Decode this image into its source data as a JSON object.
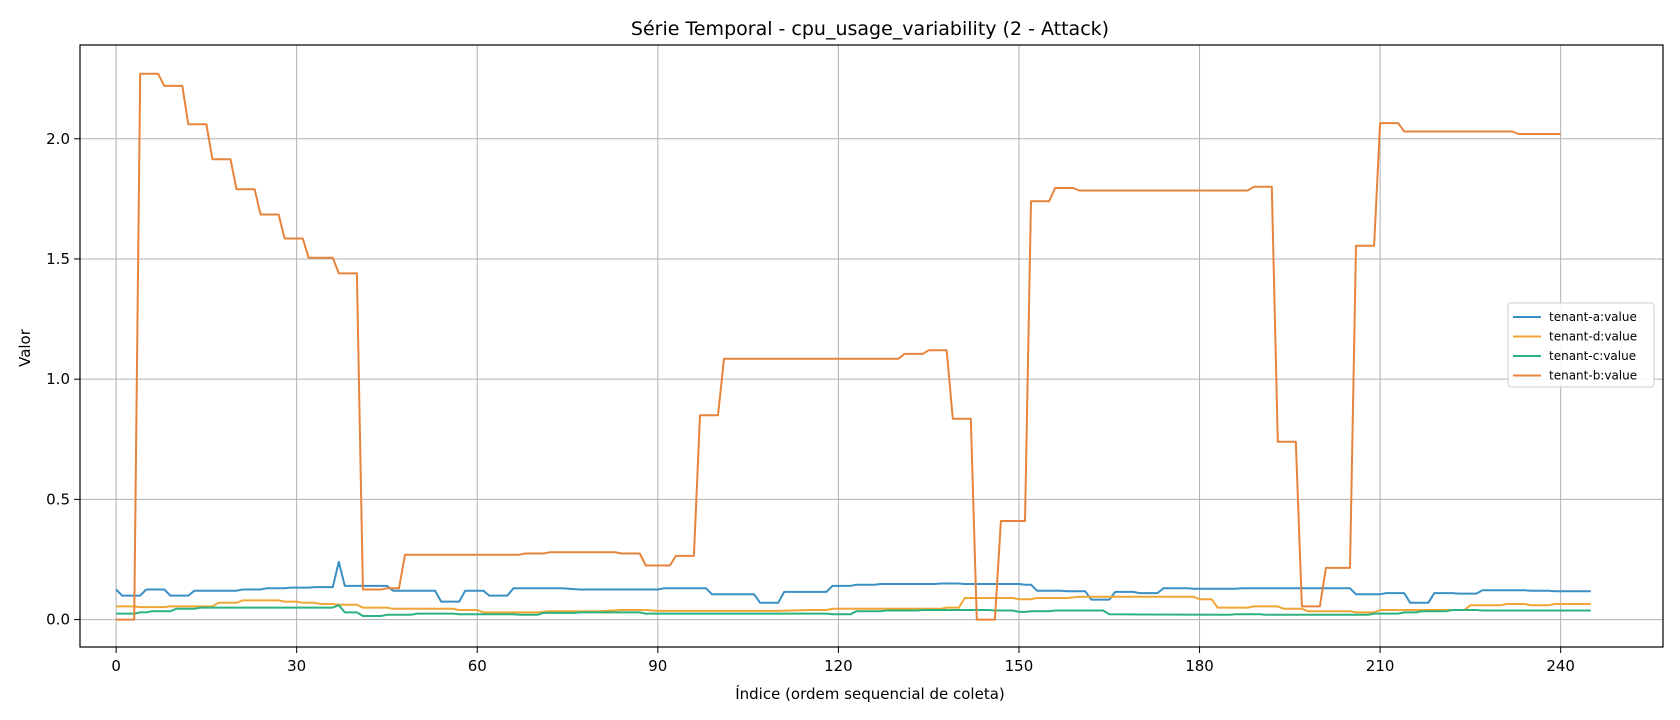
{
  "chart_data": {
    "type": "line",
    "title": "Série Temporal - cpu_usage_variability (2 - Attack)",
    "xlabel": "Índice (ordem sequencial de coleta)",
    "ylabel": "Valor",
    "xlim": [
      -6,
      257
    ],
    "ylim": [
      -0.114,
      2.39
    ],
    "xticks": [
      0,
      30,
      60,
      90,
      120,
      150,
      180,
      210,
      240
    ],
    "yticks": [
      0.0,
      0.5,
      1.0,
      1.5,
      2.0
    ],
    "ytick_labels": [
      "0.0",
      "0.5",
      "1.0",
      "1.5",
      "2.0"
    ],
    "grid": true,
    "legend_position": "center-right",
    "series": [
      {
        "name": "tenant-a:value",
        "color": "#3a8fc4",
        "points": [
          [
            0,
            0.125
          ],
          [
            1,
            0.1
          ],
          [
            2,
            0.1
          ],
          [
            3,
            0.1
          ],
          [
            4,
            0.1
          ],
          [
            5,
            0.125
          ],
          [
            6,
            0.125
          ],
          [
            7,
            0.125
          ],
          [
            8,
            0.125
          ],
          [
            9,
            0.1
          ],
          [
            10,
            0.1
          ],
          [
            11,
            0.1
          ],
          [
            12,
            0.1
          ],
          [
            13,
            0.12
          ],
          [
            14,
            0.12
          ],
          [
            17,
            0.12
          ],
          [
            20,
            0.12
          ],
          [
            21,
            0.125
          ],
          [
            24,
            0.125
          ],
          [
            25,
            0.13
          ],
          [
            28,
            0.13
          ],
          [
            29,
            0.133
          ],
          [
            32,
            0.133
          ],
          [
            33,
            0.135
          ],
          [
            36,
            0.135
          ],
          [
            37,
            0.24
          ],
          [
            38,
            0.14
          ],
          [
            40,
            0.14
          ],
          [
            45,
            0.14
          ],
          [
            46,
            0.12
          ],
          [
            49,
            0.12
          ],
          [
            53,
            0.12
          ],
          [
            54,
            0.075
          ],
          [
            57,
            0.075
          ],
          [
            58,
            0.12
          ],
          [
            61,
            0.12
          ],
          [
            62,
            0.1
          ],
          [
            65,
            0.1
          ],
          [
            66,
            0.13
          ],
          [
            74,
            0.13
          ],
          [
            77,
            0.125
          ],
          [
            90,
            0.125
          ],
          [
            91,
            0.13
          ],
          [
            98,
            0.13
          ],
          [
            99,
            0.105
          ],
          [
            106,
            0.105
          ],
          [
            107,
            0.07
          ],
          [
            110,
            0.07
          ],
          [
            111,
            0.115
          ],
          [
            118,
            0.115
          ],
          [
            119,
            0.14
          ],
          [
            122,
            0.14
          ],
          [
            123,
            0.145
          ],
          [
            126,
            0.145
          ],
          [
            127,
            0.148
          ],
          [
            136,
            0.148
          ],
          [
            137,
            0.15
          ],
          [
            140,
            0.15
          ],
          [
            141,
            0.148
          ],
          [
            150,
            0.148
          ],
          [
            151,
            0.145
          ],
          [
            152,
            0.145
          ],
          [
            153,
            0.12
          ],
          [
            157,
            0.12
          ],
          [
            158,
            0.118
          ],
          [
            161,
            0.118
          ],
          [
            162,
            0.083
          ],
          [
            165,
            0.083
          ],
          [
            166,
            0.115
          ],
          [
            169,
            0.115
          ],
          [
            170,
            0.11
          ],
          [
            173,
            0.11
          ],
          [
            174,
            0.13
          ],
          [
            178,
            0.13
          ],
          [
            179,
            0.128
          ],
          [
            186,
            0.128
          ],
          [
            187,
            0.13
          ],
          [
            200,
            0.13
          ],
          [
            201,
            0.13
          ],
          [
            205,
            0.13
          ],
          [
            206,
            0.105
          ],
          [
            210,
            0.105
          ],
          [
            211,
            0.11
          ],
          [
            214,
            0.11
          ],
          [
            215,
            0.07
          ],
          [
            218,
            0.07
          ],
          [
            219,
            0.11
          ],
          [
            222,
            0.11
          ],
          [
            223,
            0.108
          ],
          [
            226,
            0.108
          ],
          [
            227,
            0.122
          ],
          [
            234,
            0.122
          ],
          [
            235,
            0.12
          ],
          [
            238,
            0.12
          ],
          [
            239,
            0.118
          ],
          [
            245,
            0.118
          ]
        ]
      },
      {
        "name": "tenant-d:value",
        "color": "#f0a634",
        "points": [
          [
            0,
            0.055
          ],
          [
            3,
            0.055
          ],
          [
            4,
            0.052
          ],
          [
            8,
            0.052
          ],
          [
            9,
            0.055
          ],
          [
            16,
            0.055
          ],
          [
            17,
            0.07
          ],
          [
            20,
            0.07
          ],
          [
            21,
            0.08
          ],
          [
            27,
            0.08
          ],
          [
            28,
            0.075
          ],
          [
            30,
            0.075
          ],
          [
            31,
            0.07
          ],
          [
            33,
            0.07
          ],
          [
            34,
            0.065
          ],
          [
            36,
            0.065
          ],
          [
            37,
            0.062
          ],
          [
            40,
            0.062
          ],
          [
            41,
            0.05
          ],
          [
            45,
            0.05
          ],
          [
            46,
            0.045
          ],
          [
            56,
            0.045
          ],
          [
            57,
            0.04
          ],
          [
            60,
            0.04
          ],
          [
            61,
            0.03
          ],
          [
            70,
            0.03
          ],
          [
            72,
            0.035
          ],
          [
            80,
            0.035
          ],
          [
            84,
            0.04
          ],
          [
            88,
            0.04
          ],
          [
            90,
            0.036
          ],
          [
            110,
            0.036
          ],
          [
            115,
            0.04
          ],
          [
            118,
            0.04
          ],
          [
            119,
            0.045
          ],
          [
            137,
            0.045
          ],
          [
            138,
            0.05
          ],
          [
            140,
            0.05
          ],
          [
            141,
            0.09
          ],
          [
            149,
            0.09
          ],
          [
            150,
            0.085
          ],
          [
            152,
            0.085
          ],
          [
            153,
            0.09
          ],
          [
            158,
            0.09
          ],
          [
            160,
            0.095
          ],
          [
            179,
            0.095
          ],
          [
            180,
            0.085
          ],
          [
            182,
            0.085
          ],
          [
            183,
            0.05
          ],
          [
            188,
            0.05
          ],
          [
            189,
            0.055
          ],
          [
            193,
            0.055
          ],
          [
            194,
            0.045
          ],
          [
            197,
            0.045
          ],
          [
            198,
            0.035
          ],
          [
            205,
            0.035
          ],
          [
            206,
            0.03
          ],
          [
            209,
            0.03
          ],
          [
            210,
            0.04
          ],
          [
            224,
            0.04
          ],
          [
            225,
            0.06
          ],
          [
            230,
            0.06
          ],
          [
            231,
            0.065
          ],
          [
            234,
            0.065
          ],
          [
            235,
            0.06
          ],
          [
            238,
            0.06
          ],
          [
            239,
            0.065
          ],
          [
            245,
            0.065
          ]
        ]
      },
      {
        "name": "tenant-c:value",
        "color": "#2bb27e",
        "points": [
          [
            0,
            0.025
          ],
          [
            3,
            0.025
          ],
          [
            4,
            0.03
          ],
          [
            5,
            0.03
          ],
          [
            6,
            0.035
          ],
          [
            9,
            0.035
          ],
          [
            10,
            0.045
          ],
          [
            13,
            0.045
          ],
          [
            14,
            0.05
          ],
          [
            36,
            0.05
          ],
          [
            37,
            0.06
          ],
          [
            38,
            0.03
          ],
          [
            40,
            0.03
          ],
          [
            41,
            0.015
          ],
          [
            44,
            0.015
          ],
          [
            45,
            0.02
          ],
          [
            49,
            0.02
          ],
          [
            50,
            0.025
          ],
          [
            56,
            0.025
          ],
          [
            57,
            0.022
          ],
          [
            66,
            0.022
          ],
          [
            67,
            0.02
          ],
          [
            70,
            0.02
          ],
          [
            71,
            0.028
          ],
          [
            76,
            0.028
          ],
          [
            77,
            0.03
          ],
          [
            87,
            0.03
          ],
          [
            88,
            0.025
          ],
          [
            118,
            0.025
          ],
          [
            119,
            0.022
          ],
          [
            122,
            0.022
          ],
          [
            123,
            0.035
          ],
          [
            127,
            0.035
          ],
          [
            128,
            0.038
          ],
          [
            133,
            0.038
          ],
          [
            134,
            0.04
          ],
          [
            145,
            0.04
          ],
          [
            146,
            0.038
          ],
          [
            149,
            0.038
          ],
          [
            150,
            0.032
          ],
          [
            151,
            0.032
          ],
          [
            152,
            0.035
          ],
          [
            155,
            0.035
          ],
          [
            156,
            0.038
          ],
          [
            164,
            0.038
          ],
          [
            165,
            0.022
          ],
          [
            185,
            0.02
          ],
          [
            186,
            0.022
          ],
          [
            190,
            0.022
          ],
          [
            191,
            0.02
          ],
          [
            208,
            0.02
          ],
          [
            209,
            0.025
          ],
          [
            213,
            0.025
          ],
          [
            214,
            0.03
          ],
          [
            216,
            0.03
          ],
          [
            217,
            0.035
          ],
          [
            221,
            0.035
          ],
          [
            222,
            0.04
          ],
          [
            226,
            0.04
          ],
          [
            227,
            0.038
          ],
          [
            245,
            0.038
          ]
        ]
      },
      {
        "name": "tenant-b:value",
        "color": "#e6843c",
        "points": [
          [
            0,
            0.0
          ],
          [
            2,
            0.0
          ],
          [
            3,
            0.0
          ],
          [
            4,
            2.27
          ],
          [
            7,
            2.27
          ],
          [
            8,
            2.22
          ],
          [
            11,
            2.22
          ],
          [
            12,
            2.06
          ],
          [
            15,
            2.06
          ],
          [
            16,
            1.915
          ],
          [
            19,
            1.915
          ],
          [
            20,
            1.79
          ],
          [
            23,
            1.79
          ],
          [
            24,
            1.685
          ],
          [
            27,
            1.685
          ],
          [
            28,
            1.585
          ],
          [
            31,
            1.585
          ],
          [
            32,
            1.505
          ],
          [
            36,
            1.505
          ],
          [
            37,
            1.44
          ],
          [
            40,
            1.44
          ],
          [
            41,
            0.125
          ],
          [
            44,
            0.125
          ],
          [
            45,
            0.13
          ],
          [
            47,
            0.13
          ],
          [
            48,
            0.27
          ],
          [
            51,
            0.27
          ],
          [
            52,
            0.27
          ],
          [
            67,
            0.27
          ],
          [
            68,
            0.275
          ],
          [
            71,
            0.275
          ],
          [
            72,
            0.28
          ],
          [
            83,
            0.28
          ],
          [
            84,
            0.275
          ],
          [
            87,
            0.275
          ],
          [
            88,
            0.225
          ],
          [
            92,
            0.225
          ],
          [
            93,
            0.265
          ],
          [
            96,
            0.265
          ],
          [
            97,
            0.85
          ],
          [
            100,
            0.85
          ],
          [
            101,
            1.085
          ],
          [
            130,
            1.085
          ],
          [
            131,
            1.105
          ],
          [
            134,
            1.105
          ],
          [
            135,
            1.12
          ],
          [
            138,
            1.12
          ],
          [
            139,
            0.835
          ],
          [
            142,
            0.835
          ],
          [
            143,
            0.0
          ],
          [
            146,
            0.0
          ],
          [
            147,
            0.41
          ],
          [
            151,
            0.41
          ],
          [
            152,
            1.74
          ],
          [
            155,
            1.74
          ],
          [
            156,
            1.795
          ],
          [
            159,
            1.795
          ],
          [
            160,
            1.785
          ],
          [
            188,
            1.785
          ],
          [
            189,
            1.8
          ],
          [
            192,
            1.8
          ],
          [
            193,
            0.74
          ],
          [
            196,
            0.74
          ],
          [
            197,
            0.055
          ],
          [
            200,
            0.055
          ],
          [
            201,
            0.215
          ],
          [
            205,
            0.215
          ],
          [
            206,
            1.555
          ],
          [
            209,
            1.555
          ],
          [
            210,
            2.065
          ],
          [
            213,
            2.065
          ],
          [
            214,
            2.03
          ],
          [
            232,
            2.03
          ],
          [
            233,
            2.02
          ],
          [
            240,
            2.02
          ]
        ]
      }
    ]
  }
}
